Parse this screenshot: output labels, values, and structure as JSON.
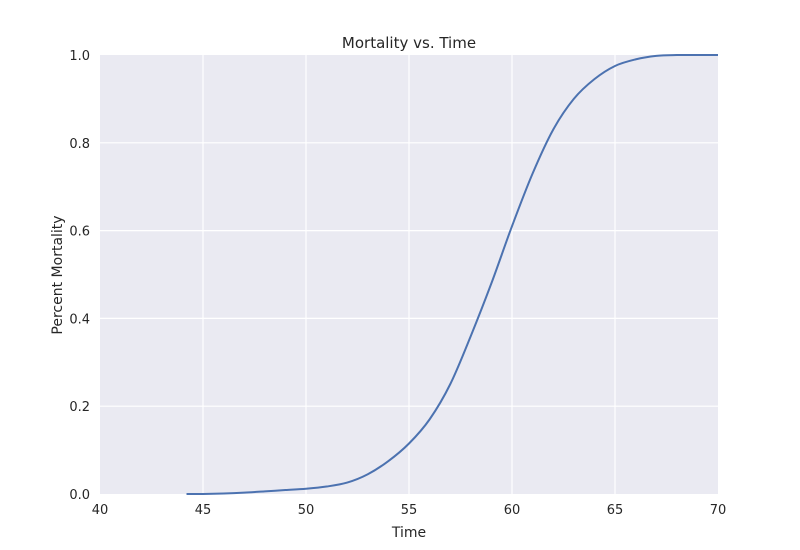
{
  "chart_data": {
    "type": "line",
    "title": "Mortality vs. Time",
    "xlabel": "Time",
    "ylabel": "Percent Mortality",
    "xlim": [
      40,
      70
    ],
    "ylim": [
      0.0,
      1.0
    ],
    "xticks": [
      40,
      45,
      50,
      55,
      60,
      65,
      70
    ],
    "yticks": [
      0.0,
      0.2,
      0.4,
      0.6,
      0.8,
      1.0
    ],
    "xtick_labels": [
      "40",
      "45",
      "50",
      "55",
      "60",
      "65",
      "70"
    ],
    "ytick_labels": [
      "0.0",
      "0.2",
      "0.4",
      "0.6",
      "0.8",
      "1.0"
    ],
    "grid": true,
    "colors": {
      "background": "#eaeaf2",
      "grid": "#ffffff",
      "line": "#4c72b0"
    },
    "series": [
      {
        "x": [
          44.2,
          45,
          46,
          47,
          48,
          49,
          50,
          51,
          52,
          53,
          54,
          55,
          56,
          57,
          58,
          59,
          60,
          61,
          62,
          63,
          64,
          65,
          66,
          67,
          68,
          69,
          70
        ],
        "y": [
          0.0,
          0.0,
          0.001,
          0.003,
          0.006,
          0.009,
          0.012,
          0.017,
          0.026,
          0.045,
          0.075,
          0.115,
          0.17,
          0.25,
          0.36,
          0.48,
          0.61,
          0.73,
          0.83,
          0.9,
          0.945,
          0.975,
          0.99,
          0.998,
          1.0,
          1.0,
          1.0
        ]
      }
    ]
  }
}
